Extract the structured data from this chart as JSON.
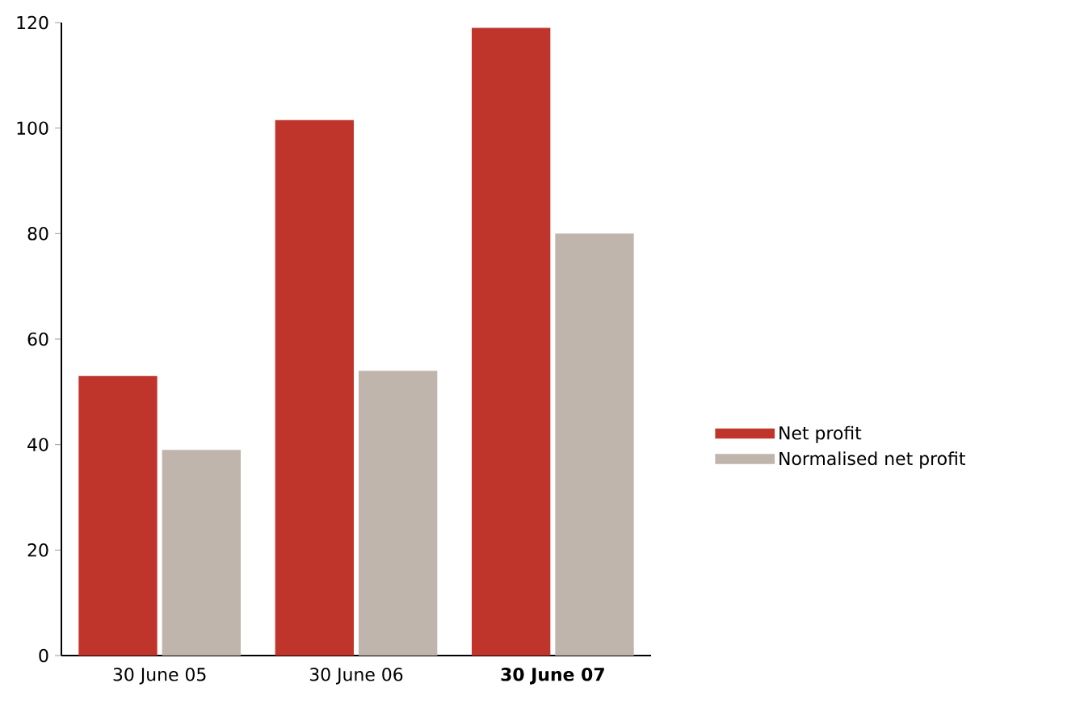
{
  "chart_data": {
    "type": "bar",
    "categories": [
      "30 June 05",
      "30 June 06",
      "**30 June 07**"
    ],
    "series": [
      {
        "name": "Net profit",
        "color": "#c0352b",
        "values": [
          53,
          101.5,
          119
        ]
      },
      {
        "name": "Normalised net profit",
        "color": "#bfb5ac",
        "values": [
          39,
          54,
          80
        ]
      }
    ],
    "ylim": [
      0,
      120
    ],
    "yticks": [
      0,
      20,
      40,
      60,
      80,
      100,
      120
    ],
    "grid": false,
    "legend": "right"
  }
}
